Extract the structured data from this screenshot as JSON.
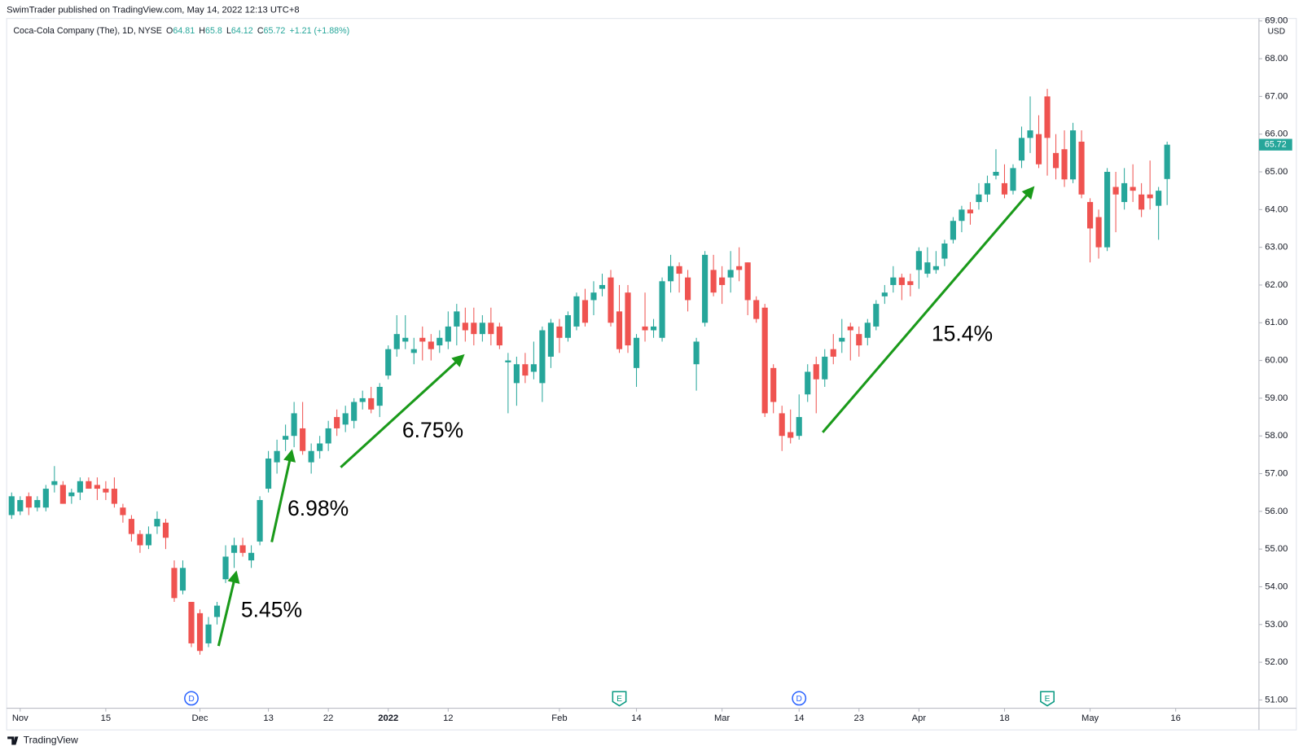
{
  "publisher_line": "SwimTrader published on TradingView.com, May 14, 2022 12:13 UTC+8",
  "footer_logo": "TradingView",
  "chart_data": {
    "type": "candlestick",
    "title": "Coca-Cola Company (The), 1D, NYSE",
    "ohlc_letters": [
      "O",
      "H",
      "L",
      "C"
    ],
    "change": "+1.21 (+1.88%)",
    "currency": "USD",
    "up_color": "#26a69a",
    "down_color": "#ef5350",
    "grid": false,
    "categories": [
      null,
      "Nov",
      null,
      null,
      null,
      null,
      null,
      null,
      null,
      null,
      null,
      "15",
      null,
      null,
      null,
      null,
      null,
      null,
      null,
      null,
      null,
      null,
      "Dec",
      null,
      null,
      null,
      null,
      null,
      null,
      null,
      "13",
      null,
      null,
      null,
      null,
      null,
      null,
      "22",
      null,
      null,
      null,
      null,
      null,
      null,
      "2022",
      null,
      null,
      null,
      null,
      null,
      null,
      "12",
      null,
      null,
      null,
      null,
      null,
      null,
      null,
      null,
      null,
      null,
      null,
      null,
      "Feb",
      null,
      null,
      null,
      null,
      null,
      null,
      null,
      null,
      "14",
      null,
      null,
      null,
      null,
      null,
      null,
      null,
      null,
      null,
      "Mar",
      null,
      null,
      null,
      null,
      null,
      null,
      null,
      null,
      "14",
      null,
      null,
      null,
      null,
      null,
      null,
      "23",
      null,
      null,
      null,
      null,
      null,
      null,
      "Apr",
      null,
      null,
      null,
      null,
      null,
      null,
      null,
      null,
      null,
      "18",
      null,
      null,
      null,
      null,
      null,
      null,
      null,
      null,
      null,
      "May",
      null,
      null,
      null,
      null,
      null,
      null,
      null,
      null,
      null,
      "16"
    ],
    "open": [
      55.9,
      56.0,
      56.4,
      56.1,
      56.1,
      56.7,
      56.7,
      56.4,
      56.5,
      56.8,
      56.7,
      56.6,
      56.6,
      56.1,
      55.8,
      55.4,
      55.1,
      55.6,
      55.7,
      54.5,
      53.9,
      53.6,
      53.3,
      52.5,
      53.2,
      54.2,
      54.9,
      55.1,
      54.7,
      55.2,
      56.6,
      57.3,
      57.9,
      58.0,
      58.2,
      57.3,
      57.6,
      57.8,
      58.5,
      58.3,
      58.4,
      58.9,
      59.0,
      58.8,
      59.6,
      60.3,
      60.5,
      60.2,
      60.6,
      60.5,
      60.4,
      60.5,
      60.9,
      61.0,
      61.0,
      60.7,
      61.0,
      60.9,
      59.95,
      59.4,
      59.9,
      59.7,
      59.4,
      60.1,
      60.9,
      60.6,
      60.9,
      61.6,
      61.6,
      61.9,
      62.2,
      61.3,
      61.8,
      59.8,
      60.9,
      60.8,
      60.6,
      62.1,
      62.5,
      62.2,
      59.9,
      61.0,
      62.4,
      62.2,
      62.2,
      62.5,
      62.6,
      61.6,
      61.4,
      59.8,
      58.6,
      58.1,
      58.0,
      59.1,
      59.9,
      59.5,
      60.3,
      60.5,
      60.9,
      60.7,
      60.6,
      60.9,
      61.7,
      62.0,
      62.2,
      62.1,
      62.4,
      62.3,
      62.4,
      62.7,
      63.2,
      63.7,
      64.0,
      64.2,
      64.4,
      64.9,
      64.7,
      64.5,
      65.3,
      65.9,
      66.0,
      67.0,
      65.5,
      65.6,
      64.8,
      65.8,
      64.2,
      63.8,
      63.0,
      64.6,
      64.2,
      64.6,
      64.4,
      64.4,
      64.1,
      64.81,
      null
    ],
    "high": [
      56.5,
      56.4,
      56.5,
      56.4,
      56.7,
      57.2,
      56.8,
      56.6,
      56.9,
      56.9,
      56.9,
      56.8,
      56.9,
      56.2,
      55.9,
      55.5,
      55.6,
      56.0,
      55.8,
      54.7,
      54.7,
      53.6,
      53.4,
      53.2,
      53.6,
      55.1,
      55.3,
      55.3,
      55.1,
      56.4,
      57.6,
      57.9,
      58.3,
      58.9,
      58.9,
      57.8,
      58.0,
      58.4,
      58.7,
      58.8,
      59.0,
      59.2,
      59.3,
      59.4,
      60.4,
      61.2,
      61.2,
      60.6,
      60.9,
      60.7,
      60.8,
      61.3,
      61.5,
      61.4,
      61.4,
      61.2,
      61.4,
      61.0,
      60.2,
      60.1,
      60.2,
      60.5,
      60.9,
      61.1,
      61.1,
      61.3,
      61.8,
      61.9,
      62.1,
      62.3,
      62.4,
      62.0,
      62.0,
      60.7,
      61.8,
      61.1,
      62.2,
      62.8,
      62.6,
      62.4,
      60.6,
      62.9,
      62.8,
      62.5,
      62.9,
      63.0,
      62.6,
      61.7,
      61.5,
      59.9,
      58.8,
      58.7,
      59.1,
      59.9,
      60.1,
      60.3,
      60.7,
      61.1,
      61.0,
      60.9,
      61.1,
      61.6,
      62.0,
      62.5,
      62.3,
      62.3,
      63.0,
      63.0,
      62.9,
      63.2,
      63.8,
      64.1,
      64.2,
      64.7,
      64.9,
      65.6,
      65.2,
      65.2,
      66.2,
      67.0,
      66.5,
      67.2,
      66.0,
      66.1,
      66.3,
      66.1,
      64.3,
      64.0,
      65.1,
      65.0,
      65.1,
      65.2,
      64.7,
      65.3,
      64.6,
      65.8,
      null
    ],
    "low": [
      55.8,
      55.9,
      55.9,
      56.0,
      56.0,
      56.5,
      56.2,
      56.2,
      56.3,
      56.6,
      56.3,
      56.3,
      56.1,
      55.7,
      55.2,
      54.9,
      55.0,
      55.4,
      55.0,
      53.6,
      53.8,
      52.4,
      52.2,
      52.4,
      53.0,
      54.1,
      54.5,
      54.8,
      54.5,
      55.1,
      56.5,
      57.0,
      57.6,
      57.7,
      57.5,
      57.0,
      57.4,
      57.6,
      58.0,
      58.1,
      58.2,
      58.7,
      58.6,
      58.5,
      59.5,
      60.1,
      60.3,
      59.9,
      60.0,
      60.0,
      60.2,
      60.3,
      60.4,
      60.5,
      60.4,
      60.5,
      60.4,
      60.3,
      58.6,
      58.8,
      59.4,
      59.5,
      58.9,
      59.8,
      60.2,
      60.5,
      60.8,
      60.9,
      61.2,
      61.7,
      60.9,
      60.2,
      60.2,
      59.3,
      60.5,
      60.6,
      60.5,
      61.8,
      61.8,
      61.3,
      59.2,
      60.9,
      61.7,
      61.5,
      61.8,
      62.1,
      61.2,
      61.0,
      58.5,
      58.6,
      57.6,
      57.8,
      57.9,
      58.9,
      58.6,
      59.3,
      59.9,
      60.2,
      60.0,
      60.1,
      60.4,
      60.8,
      61.5,
      61.8,
      61.6,
      61.7,
      61.9,
      62.2,
      62.3,
      62.5,
      63.1,
      63.4,
      63.6,
      64.0,
      64.2,
      64.8,
      64.3,
      64.4,
      65.1,
      65.5,
      65.1,
      64.9,
      64.8,
      64.6,
      64.7,
      64.3,
      62.6,
      62.7,
      62.9,
      63.4,
      64.0,
      64.2,
      63.8,
      64.0,
      63.2,
      64.12,
      null
    ],
    "close": [
      56.4,
      56.3,
      56.1,
      56.3,
      56.6,
      56.8,
      56.2,
      56.5,
      56.8,
      56.6,
      56.6,
      56.5,
      56.2,
      55.9,
      55.4,
      55.1,
      55.4,
      55.8,
      55.3,
      53.7,
      54.5,
      52.5,
      52.3,
      53.0,
      53.5,
      54.8,
      55.1,
      54.9,
      54.9,
      56.3,
      57.4,
      57.6,
      58.0,
      58.6,
      57.6,
      57.6,
      57.8,
      58.2,
      58.2,
      58.6,
      58.9,
      59.0,
      58.7,
      59.3,
      60.3,
      60.7,
      60.6,
      60.3,
      60.5,
      60.3,
      60.6,
      60.9,
      61.3,
      60.8,
      60.7,
      61.0,
      60.7,
      60.4,
      60.0,
      59.9,
      59.6,
      59.9,
      60.8,
      61.0,
      60.6,
      61.2,
      61.7,
      61.0,
      61.8,
      62.0,
      61.0,
      60.3,
      60.4,
      60.6,
      60.8,
      60.9,
      62.1,
      62.5,
      62.3,
      61.6,
      60.5,
      62.8,
      61.8,
      62.0,
      62.4,
      62.4,
      61.6,
      61.1,
      58.6,
      58.9,
      58.0,
      57.95,
      58.5,
      59.7,
      59.5,
      60.1,
      60.1,
      60.6,
      60.8,
      60.4,
      61.0,
      61.5,
      61.8,
      62.2,
      62.0,
      62.0,
      62.9,
      62.6,
      62.5,
      63.1,
      63.7,
      64.0,
      63.9,
      64.4,
      64.7,
      65.0,
      64.4,
      65.1,
      65.9,
      66.1,
      65.2,
      65.9,
      65.1,
      64.8,
      66.1,
      64.4,
      63.5,
      63.0,
      65.0,
      64.4,
      64.7,
      64.5,
      64.0,
      64.3,
      64.5,
      65.72,
      null
    ],
    "ylim": [
      51,
      69
    ],
    "yticks": [
      {
        "value": 51,
        "label": "51.00"
      },
      {
        "value": 52,
        "label": "52.00"
      },
      {
        "value": 53,
        "label": "53.00"
      },
      {
        "value": 54,
        "label": "54.00"
      },
      {
        "value": 55,
        "label": "55.00"
      },
      {
        "value": 56,
        "label": "56.00"
      },
      {
        "value": 57,
        "label": "57.00"
      },
      {
        "value": 58,
        "label": "58.00"
      },
      {
        "value": 59,
        "label": "59.00"
      },
      {
        "value": 60,
        "label": "60.00"
      },
      {
        "value": 61,
        "label": "61.00"
      },
      {
        "value": 62,
        "label": "62.00"
      },
      {
        "value": 63,
        "label": "63.00"
      },
      {
        "value": 64,
        "label": "64.00"
      },
      {
        "value": 65,
        "label": "65.00"
      },
      {
        "value": 66,
        "label": "66.00"
      },
      {
        "value": 67,
        "label": "67.00"
      },
      {
        "value": 68,
        "label": "68.00"
      },
      {
        "value": 69,
        "label": "69.00"
      }
    ],
    "events": [
      {
        "label": "D",
        "color": "#2962ff"
      },
      {
        "label": "E",
        "color": "#089981"
      },
      {
        "label": "D",
        "color": "#2962ff"
      },
      {
        "label": "E",
        "color": "#089981"
      }
    ],
    "annotations": [
      {
        "text": "5.45%",
        "color": "#1a9a1a"
      },
      {
        "text": "6.98%",
        "color": "#1a9a1a"
      },
      {
        "text": "6.75%",
        "color": "#1a9a1a"
      },
      {
        "text": "15.4%",
        "color": "#1a9a1a"
      }
    ]
  }
}
